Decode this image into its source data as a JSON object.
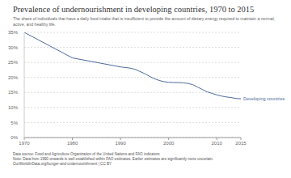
{
  "chart_data": {
    "type": "line",
    "title": "Prevalence of undernourishment in developing countries, 1970 to 2015",
    "subtitle": "The share of individuals that have a daily food intake that is insufficient to provide the amount of dietary energy required to maintain a normal, active, and healthy life.",
    "x": [
      1970,
      1980,
      1990,
      1991,
      1992,
      1993,
      1994,
      1995,
      1996,
      1997,
      1998,
      1999,
      2000,
      2001,
      2002,
      2003,
      2004,
      2005,
      2006,
      2007,
      2008,
      2009,
      2010,
      2011,
      2012,
      2013,
      2014,
      2015
    ],
    "series": [
      {
        "name": "Developing countries",
        "color": "#4c6a9c",
        "values": [
          35,
          26.5,
          23.5,
          23.3,
          23.1,
          22.7,
          22.0,
          21.3,
          20.4,
          19.6,
          19.0,
          18.6,
          18.4,
          18.3,
          18.3,
          18.2,
          18.0,
          17.6,
          16.8,
          16.0,
          15.2,
          14.7,
          14.2,
          13.8,
          13.5,
          13.3,
          13.0,
          12.9
        ]
      }
    ],
    "xlim": [
      1970,
      2015
    ],
    "xticks": [
      1970,
      1980,
      1990,
      2000,
      2010,
      2015
    ],
    "ylim": [
      0,
      35
    ],
    "yticks": [
      {
        "value": 0,
        "label": "0%"
      },
      {
        "value": 5,
        "label": "5%"
      },
      {
        "value": 10,
        "label": "10%"
      },
      {
        "value": 15,
        "label": "15%"
      },
      {
        "value": 20,
        "label": "20%"
      },
      {
        "value": 25,
        "label": "25%"
      },
      {
        "value": 30,
        "label": "30%"
      },
      {
        "value": 35,
        "label": "35%"
      }
    ],
    "grid": true,
    "source": "Data source: Food and Agriculture Organization of the United Nations and FAO indicators",
    "note": "Note: Data from 1990 onwards is well established within FAO estimates. Earlier estimates are significantly more uncertain.",
    "url": "OurWorldInData.org/hunger-and-undernourishment | CC BY"
  }
}
